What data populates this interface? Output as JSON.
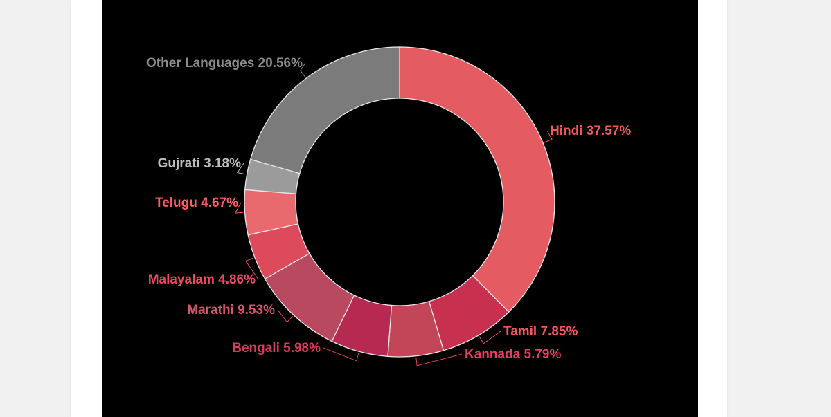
{
  "chart_data": {
    "type": "pie",
    "style": "donut",
    "slice_order": "clockwise-from-top",
    "categories": [
      "Hindi",
      "Tamil",
      "Kannada",
      "Bengali",
      "Marathi",
      "Malayalam",
      "Telugu",
      "Gujrati",
      "Other Languages"
    ],
    "values": [
      37.57,
      7.85,
      5.79,
      5.98,
      9.53,
      4.86,
      4.67,
      3.18,
      20.56
    ],
    "labels": [
      "Hindi 37.57%",
      "Tamil 7.85%",
      "Kannada 5.79%",
      "Bengali 5.98%",
      "Marathi 9.53%",
      "Malayalam 4.86%",
      "Telugu 4.67%",
      "Gujrati 3.18%",
      "Other Languages 20.56%"
    ],
    "colors": [
      "#e45b61",
      "#c8304f",
      "#c24558",
      "#b62a52",
      "#b9495f",
      "#dd4a5c",
      "#e86a6e",
      "#9b9b9b",
      "#7b7b7b"
    ],
    "label_colors": [
      "#f0585c",
      "#f0585c",
      "#e83d62",
      "#d63a5c",
      "#d2556b",
      "#ee4a5e",
      "#ff5c62",
      "#bdbdbd",
      "#8c8c8c"
    ],
    "background": "#000000"
  }
}
